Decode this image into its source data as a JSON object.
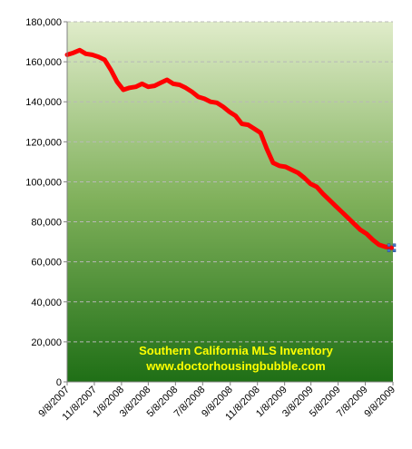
{
  "chart_data": {
    "type": "line",
    "title": "",
    "xlabel": "",
    "ylabel": "",
    "ylim": [
      0,
      180000
    ],
    "yticks": [
      "0",
      "20,000",
      "40,000",
      "60,000",
      "80,000",
      "100,000",
      "120,000",
      "140,000",
      "160,000",
      "180,000"
    ],
    "xticks": [
      "9/8/2007",
      "11/8/2007",
      "1/8/2008",
      "3/8/2008",
      "5/8/2008",
      "7/8/2008",
      "9/8/2008",
      "11/8/2008",
      "1/8/2009",
      "3/8/2009",
      "5/8/2009",
      "7/8/2009",
      "9/8/2009"
    ],
    "grid": "horizontal dashed",
    "legend": "none",
    "annotation": [
      "Southern California MLS Inventory",
      "www.doctorhousingbubble.com"
    ],
    "series": [
      {
        "x": [
          "9/8/2007",
          "9/22/2007",
          "10/6/2007",
          "10/20/2007",
          "11/3/2007",
          "11/17/2007",
          "12/1/2007",
          "12/15/2007",
          "12/29/2007",
          "1/12/2008",
          "1/26/2008",
          "2/9/2008",
          "2/23/2008",
          "3/8/2008",
          "3/22/2008",
          "4/5/2008",
          "4/19/2008",
          "5/3/2008",
          "5/17/2008",
          "5/31/2008",
          "6/14/2008",
          "6/28/2008",
          "7/12/2008",
          "7/26/2008",
          "8/9/2008",
          "8/23/2008",
          "9/6/2008",
          "9/20/2008",
          "10/4/2008",
          "10/18/2008",
          "11/1/2008",
          "11/15/2008",
          "11/29/2008",
          "12/13/2008",
          "12/27/2008",
          "1/10/2009",
          "1/24/2009",
          "2/7/2009",
          "2/21/2009",
          "3/7/2009",
          "3/21/2009",
          "4/4/2009",
          "4/18/2009",
          "5/2/2009",
          "5/16/2009",
          "5/30/2009",
          "6/13/2009",
          "6/27/2009",
          "7/11/2009",
          "7/25/2009",
          "8/8/2009",
          "8/22/2009",
          "9/5/2009"
        ],
        "values": [
          163500,
          164500,
          165800,
          164000,
          163500,
          162500,
          161000,
          156000,
          150000,
          146000,
          147000,
          147500,
          149000,
          147500,
          148000,
          149500,
          151000,
          149000,
          148500,
          147000,
          145000,
          142500,
          141500,
          140000,
          139500,
          137500,
          135000,
          133000,
          129000,
          128500,
          126500,
          124500,
          116500,
          109500,
          108000,
          107500,
          106000,
          104500,
          102000,
          99000,
          97500,
          94000,
          91000,
          88000,
          85000,
          82000,
          79000,
          76000,
          74000,
          71000,
          68500,
          67500,
          67000
        ]
      }
    ],
    "colors": {
      "line": "#ff0000",
      "plot_top": "#d9e9c2",
      "plot_bottom": "#1e6e14",
      "gridline": "#b8b8b8",
      "annotation": "#ffff00"
    }
  }
}
